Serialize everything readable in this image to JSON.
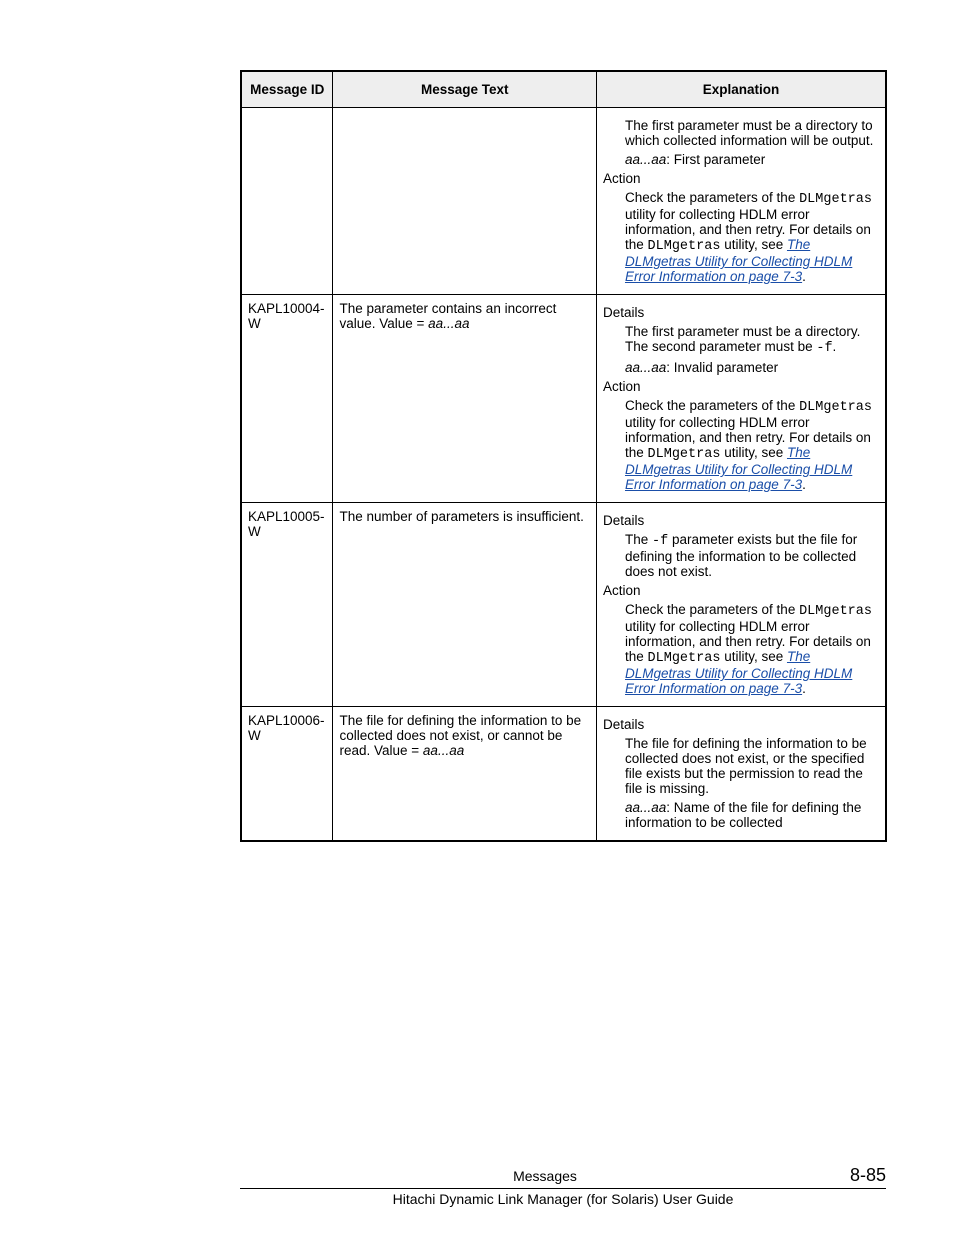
{
  "table": {
    "headers": {
      "id": "Message ID",
      "text": "Message Text",
      "expl": "Explanation"
    },
    "link_text": "The DLMgetras Utility for Collecting HDLM Error Information on page 7-3",
    "rows": [
      {
        "id": "",
        "text": "",
        "expl_detail1": "The first parameter must be a directory to which collected information will be output.",
        "expl_param_label": "aa...aa",
        "expl_param_text": ": First parameter",
        "action_label": "Action",
        "action_text_a": "Check the parameters of the ",
        "action_mono1": "DLMgetras",
        "action_text_b": " utility for collecting HDLM error information, and then retry. For details on the ",
        "action_mono2": "DLMgetras",
        "action_text_c": " utility, see "
      },
      {
        "id": "KAPL10004-W",
        "text_a": "The parameter contains an incorrect value. Value = ",
        "text_ital": "aa...aa",
        "details_label": "Details",
        "expl_detail1a": "The first parameter must be a directory. The second parameter must be ",
        "expl_detail1_mono": "-f",
        "expl_detail1b": ".",
        "expl_param_label": "aa...aa",
        "expl_param_text": ": Invalid parameter",
        "action_label": "Action",
        "action_text_a": "Check the parameters of the ",
        "action_mono1": "DLMgetras",
        "action_text_b": " utility for collecting HDLM error information, and then retry. For details on the ",
        "action_mono2": "DLMgetras",
        "action_text_c": " utility, see "
      },
      {
        "id": "KAPL10005-W",
        "text": "The number of parameters is insufficient.",
        "details_label": "Details",
        "expl_detail1a": "The ",
        "expl_detail1_mono": "-f",
        "expl_detail1b": " parameter exists but the file for defining the information to be collected does not exist.",
        "action_label": "Action",
        "action_text_a": "Check the parameters of the ",
        "action_mono1": "DLMgetras",
        "action_text_b": " utility for collecting HDLM error information, and then retry. For details on the ",
        "action_mono2": "DLMgetras",
        "action_text_c": " utility, see "
      },
      {
        "id": "KAPL10006-W",
        "text_a": "The file for defining the information to be collected does not exist, or cannot be read. Value = ",
        "text_ital": "aa...aa",
        "details_label": "Details",
        "expl_detail1": "The file for defining the information to be collected does not exist, or the specified file exists but the permission to read the file is missing.",
        "expl_param_label": "aa...aa",
        "expl_param_text": ": Name of the file for defining the information to be collected"
      }
    ]
  },
  "footer": {
    "section": "Messages",
    "pagenum": "8-85",
    "book": "Hitachi Dynamic Link Manager (for Solaris) User Guide"
  }
}
